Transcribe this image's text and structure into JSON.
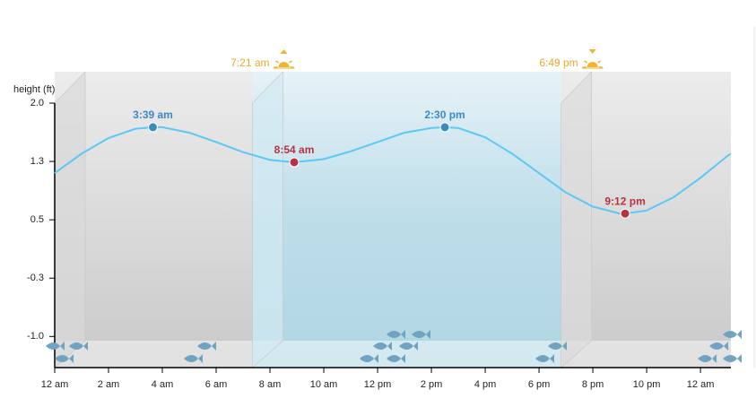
{
  "chart_data": {
    "type": "line",
    "y_label": "height (ft)",
    "x": [
      0,
      1,
      2,
      3,
      3.65,
      4,
      5,
      6,
      7,
      8,
      8.9,
      10,
      11,
      12,
      13,
      14,
      14.5,
      15,
      16,
      17,
      18,
      19,
      20,
      21,
      21.2,
      22,
      23,
      24,
      25,
      25.13
    ],
    "series": [
      {
        "color": "#5bc8f5",
        "values": [
          1.1,
          1.35,
          1.55,
          1.67,
          1.69,
          1.69,
          1.62,
          1.5,
          1.37,
          1.27,
          1.24,
          1.28,
          1.38,
          1.5,
          1.62,
          1.68,
          1.69,
          1.68,
          1.56,
          1.35,
          1.1,
          0.85,
          0.67,
          0.58,
          0.58,
          0.62,
          0.79,
          1.04,
          1.32,
          1.35
        ]
      }
    ],
    "high_tides": {
      "color": "#3b8bc2",
      "x": [
        3.65,
        14.5
      ],
      "values": [
        1.69,
        1.69
      ],
      "labels": [
        "3:39 am",
        "2:30 pm"
      ]
    },
    "low_tides": {
      "color": "#b8323f",
      "x": [
        8.9,
        21.2
      ],
      "values": [
        1.24,
        0.58
      ],
      "labels": [
        "8:54 am",
        "9:12 pm"
      ]
    },
    "sunrise": {
      "x": 7.35,
      "label": "7:21 am"
    },
    "sunset": {
      "x": 18.82,
      "label": "6:49 pm"
    },
    "xlim": [
      0,
      25.13
    ],
    "xticks": [
      {
        "value": 0,
        "label": "12 am"
      },
      {
        "value": 2,
        "label": "2 am"
      },
      {
        "value": 4,
        "label": "4 am"
      },
      {
        "value": 6,
        "label": "6 am"
      },
      {
        "value": 8,
        "label": "8 am"
      },
      {
        "value": 10,
        "label": "10 am"
      },
      {
        "value": 12,
        "label": "12 pm"
      },
      {
        "value": 14,
        "label": "2 pm"
      },
      {
        "value": 16,
        "label": "4 pm"
      },
      {
        "value": 18,
        "label": "6 pm"
      },
      {
        "value": 20,
        "label": "8 pm"
      },
      {
        "value": 22,
        "label": "10 pm"
      },
      {
        "value": 24,
        "label": "12 am"
      }
    ],
    "ylim": [
      -1.4,
      2.0
    ],
    "yticks": [
      {
        "value": 2.0,
        "label": "2.0"
      },
      {
        "value": 1.25,
        "label": "1.3"
      },
      0.5,
      {
        "value": -0.25,
        "label": "-0.3"
      },
      {
        "value": -1.0,
        "label": "-1.0"
      }
    ]
  }
}
